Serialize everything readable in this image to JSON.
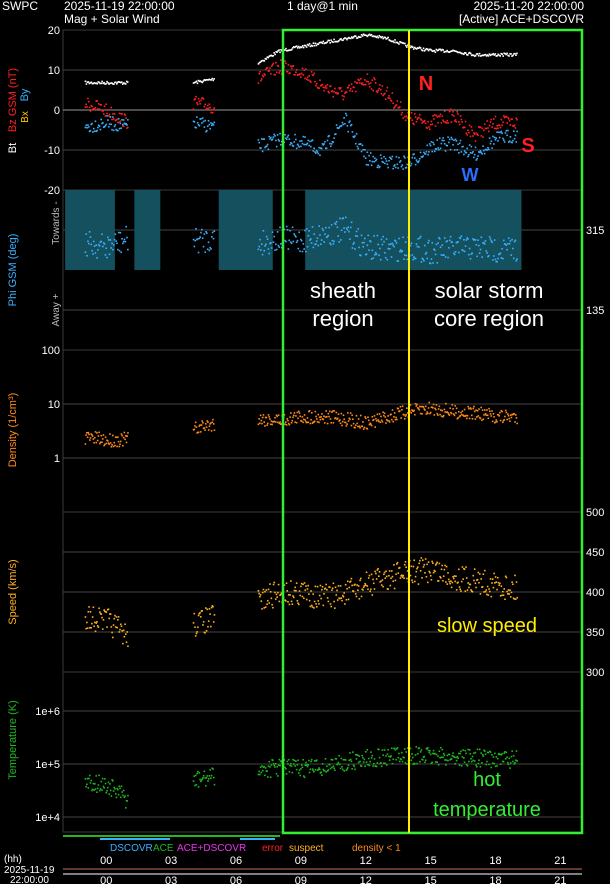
{
  "header": {
    "agency": "SWPC",
    "start_time": "2025-11-19 22:00:00",
    "subtitle": "Mag + Solar Wind",
    "resolution": "1 day@1 min",
    "end_time": "2025-11-20 22:00:00",
    "source": "[Active] ACE+DSCOVR"
  },
  "colors": {
    "bt": "#ffffff",
    "bz": "#ff2020",
    "by": "#3ab0ff",
    "phi": "#3ab0ff",
    "density": "#ff8a1a",
    "speed": "#ffb020",
    "temperature": "#1fb81f",
    "sheath_box": "#33ee33",
    "shock_line": "#ffee00",
    "phi_band": "#15505f"
  },
  "chart_data": [
    {
      "type": "scatter",
      "ylabel_parts": [
        {
          "text": "Bt",
          "color": "#ffffff"
        },
        {
          "text": "Bz GSM (nT)",
          "color": "#ff2020"
        },
        {
          "text": "Bx",
          "color": "#ffcc00"
        },
        {
          "text": "By",
          "color": "#3ab0ff"
        }
      ],
      "ylim": [
        -20,
        20
      ],
      "yticks": [
        "20",
        "10",
        "0",
        "-10",
        "-20"
      ],
      "x_hours": [
        0,
        1,
        2,
        3,
        4,
        5,
        6,
        7,
        8,
        9,
        10,
        11,
        12,
        13,
        14,
        15,
        16,
        17,
        18,
        19,
        20,
        21,
        22,
        23
      ],
      "series": [
        {
          "name": "Bt",
          "values": [
            null,
            7,
            7,
            7,
            null,
            null,
            7,
            8,
            null,
            12,
            15,
            16,
            17,
            18,
            19,
            18,
            16,
            15,
            15,
            14,
            14,
            14,
            null,
            null
          ]
        },
        {
          "name": "Bz",
          "values": [
            null,
            2,
            0,
            -3,
            null,
            null,
            2,
            1,
            null,
            8,
            11,
            10,
            6,
            4,
            8,
            4,
            -2,
            -3,
            -1,
            -6,
            -3,
            -3,
            null,
            null
          ]
        },
        {
          "name": "By",
          "values": [
            null,
            -4,
            -3,
            -4,
            null,
            null,
            -3,
            -4,
            null,
            -9,
            -7,
            -8,
            -10,
            -2,
            -12,
            -13,
            -13,
            -9,
            -8,
            -11,
            -7,
            -6,
            null,
            null
          ]
        }
      ],
      "annotations": [
        "N",
        "S",
        "W"
      ]
    },
    {
      "type": "scatter",
      "ylabel": "Phi GSM (deg)",
      "side_labels": [
        "Towards -",
        "Away +"
      ],
      "right_ticks": [
        "315",
        "135"
      ],
      "x_hours": [
        0,
        1,
        2,
        3,
        4,
        5,
        6,
        7,
        8,
        9,
        10,
        11,
        12,
        13,
        14,
        15,
        16,
        17,
        18,
        19,
        20,
        21,
        22,
        23
      ],
      "series": [
        {
          "name": "Phi",
          "values": [
            null,
            310,
            300,
            320,
            null,
            null,
            315,
            320,
            null,
            310,
            320,
            315,
            330,
            340,
            300,
            295,
            300,
            292,
            297,
            300,
            295,
            297,
            null,
            null
          ]
        }
      ],
      "annotations": [
        "sheath region",
        "solar storm core region"
      ]
    },
    {
      "type": "scatter",
      "ylabel": "Density (1/cm³)",
      "log": true,
      "yticks": [
        "100",
        "10",
        "1"
      ],
      "x_hours": [
        0,
        1,
        2,
        3,
        4,
        5,
        6,
        7,
        8,
        9,
        10,
        11,
        12,
        13,
        14,
        15,
        16,
        17,
        18,
        19,
        20,
        21,
        22,
        23
      ],
      "series": [
        {
          "name": "Density",
          "values": [
            null,
            2.5,
            2.2,
            2.3,
            null,
            null,
            3.5,
            4.5,
            null,
            5.5,
            5.2,
            6,
            6,
            5.5,
            4.5,
            6,
            7.5,
            8.5,
            7.5,
            7,
            6,
            6,
            null,
            null
          ]
        }
      ]
    },
    {
      "type": "scatter",
      "ylabel": "Speed (km/s)",
      "right_ticks": [
        "500",
        "450",
        "400",
        "350",
        "300"
      ],
      "ylim": [
        300,
        500
      ],
      "x_hours": [
        0,
        1,
        2,
        3,
        4,
        5,
        6,
        7,
        8,
        9,
        10,
        11,
        12,
        13,
        14,
        15,
        16,
        17,
        18,
        19,
        20,
        21,
        22,
        23
      ],
      "series": [
        {
          "name": "Speed",
          "values": [
            null,
            370,
            365,
            345,
            null,
            null,
            360,
            370,
            null,
            390,
            400,
            400,
            395,
            398,
            410,
            420,
            425,
            430,
            420,
            415,
            410,
            405,
            null,
            null
          ]
        }
      ],
      "annotations": [
        "slow speed"
      ]
    },
    {
      "type": "scatter",
      "ylabel": "Temperature (K)",
      "log": true,
      "yticks": [
        "1e+6",
        "1e+5",
        "1e+4"
      ],
      "x_hours": [
        0,
        1,
        2,
        3,
        4,
        5,
        6,
        7,
        8,
        9,
        10,
        11,
        12,
        13,
        14,
        15,
        16,
        17,
        18,
        19,
        20,
        21,
        22,
        23
      ],
      "series": [
        {
          "name": "Temperature",
          "values": [
            null,
            50000,
            40000,
            20000,
            null,
            null,
            50000,
            60000,
            null,
            80000,
            90000,
            85000,
            90000,
            110000,
            130000,
            140000,
            150000,
            145000,
            140000,
            135000,
            130000,
            125000,
            null,
            null
          ]
        }
      ],
      "annotations": [
        "hot",
        "temperature"
      ]
    }
  ],
  "legend": {
    "items": [
      {
        "text": "DSCOVR",
        "color": "#3ab0ff"
      },
      {
        "text": "ACE",
        "color": "#1fb81f"
      },
      {
        "text": "ACE+DSCOVR",
        "color": "#ee33ee"
      },
      {
        "text": "error",
        "color": "#ff2020"
      },
      {
        "text": "suspect",
        "color": "#ffb020"
      },
      {
        "text": "density < 1",
        "color": "#ff8a1a"
      }
    ]
  },
  "time_axis": {
    "unit": "(hh)",
    "date": "2025-11-19",
    "time": "22:00:00",
    "labels": [
      "00",
      "03",
      "06",
      "09",
      "12",
      "15",
      "18",
      "21"
    ]
  }
}
